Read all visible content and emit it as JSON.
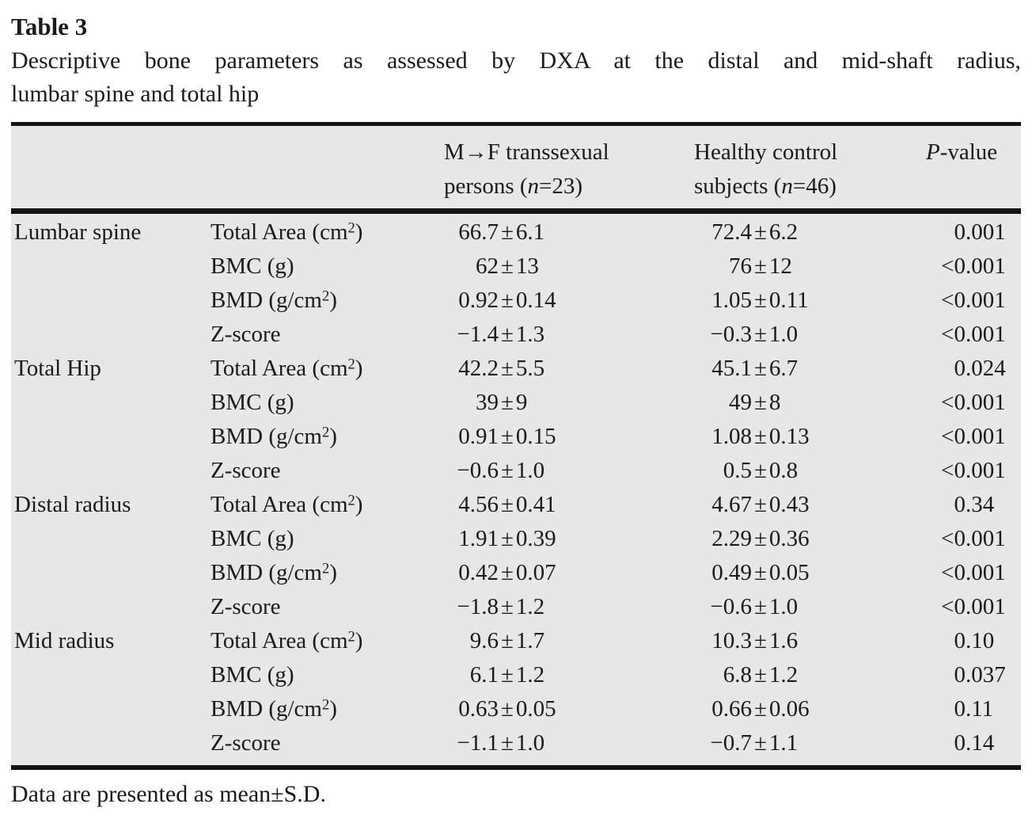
{
  "page": {
    "title": "Table 3",
    "caption_line1": "Descriptive bone parameters as assessed by DXA at the distal and mid-shaft radius,",
    "caption_line2": "lumbar spine and total hip",
    "footnote": "Data are presented as mean±S.D."
  },
  "table": {
    "header": {
      "region_column": "",
      "parameter_column": "",
      "group1_line1": "M→F transsexual",
      "group1_line2": "persons (*n*=23)",
      "group2_line1": "Healthy control",
      "group2_line2": "subjects (*n*=46)",
      "pvalue": "*P*-value"
    },
    "rows": [
      {
        "region": "Lumbar spine",
        "parameter": "Total Area (cm^2)",
        "mf": "66.7±6.1",
        "control": "72.4±6.2",
        "p": "0.001"
      },
      {
        "region": "",
        "parameter": "BMC (g)",
        "mf": "62±13",
        "control": "76±12",
        "p": "<0.001"
      },
      {
        "region": "",
        "parameter": "BMD (g/cm^2)",
        "mf": "0.92±0.14",
        "control": "1.05±0.11",
        "p": "<0.001"
      },
      {
        "region": "",
        "parameter": "Z-score",
        "mf": "−1.4±1.3",
        "control": "−0.3±1.0",
        "p": "<0.001"
      },
      {
        "region": "Total Hip",
        "parameter": "Total Area (cm^2)",
        "mf": "42.2±5.5",
        "control": "45.1±6.7",
        "p": "0.024"
      },
      {
        "region": "",
        "parameter": "BMC (g)",
        "mf": "39±9",
        "control": "49±8",
        "p": "<0.001"
      },
      {
        "region": "",
        "parameter": "BMD (g/cm^2)",
        "mf": "0.91±0.15",
        "control": "1.08±0.13",
        "p": "<0.001"
      },
      {
        "region": "",
        "parameter": "Z-score",
        "mf": "−0.6±1.0",
        "control": "0.5±0.8",
        "p": "<0.001"
      },
      {
        "region": "Distal radius",
        "parameter": "Total Area (cm^2)",
        "mf": "4.56±0.41",
        "control": "4.67±0.43",
        "p": "0.34"
      },
      {
        "region": "",
        "parameter": "BMC (g)",
        "mf": "1.91±0.39",
        "control": "2.29±0.36",
        "p": "<0.001"
      },
      {
        "region": "",
        "parameter": "BMD (g/cm^2)",
        "mf": "0.42±0.07",
        "control": "0.49±0.05",
        "p": "<0.001"
      },
      {
        "region": "",
        "parameter": "Z-score",
        "mf": "−1.8±1.2",
        "control": "−0.6±1.0",
        "p": "<0.001"
      },
      {
        "region": "Mid radius",
        "parameter": "Total Area (cm^2)",
        "mf": "9.6±1.7",
        "control": "10.3±1.6",
        "p": "0.10"
      },
      {
        "region": "",
        "parameter": "BMC (g)",
        "mf": "6.1±1.2",
        "control": "6.8±1.2",
        "p": "0.037"
      },
      {
        "region": "",
        "parameter": "BMD (g/cm^2)",
        "mf": "0.63±0.05",
        "control": "0.66±0.06",
        "p": "0.11"
      },
      {
        "region": "",
        "parameter": "Z-score",
        "mf": "−1.1±1.0",
        "control": "−0.7±1.1",
        "p": "0.14"
      }
    ]
  },
  "colors": {
    "table_background": "#e6e7e6",
    "rule": "#141414",
    "text": "#1a1a1a",
    "page_background": "#ffffff"
  }
}
